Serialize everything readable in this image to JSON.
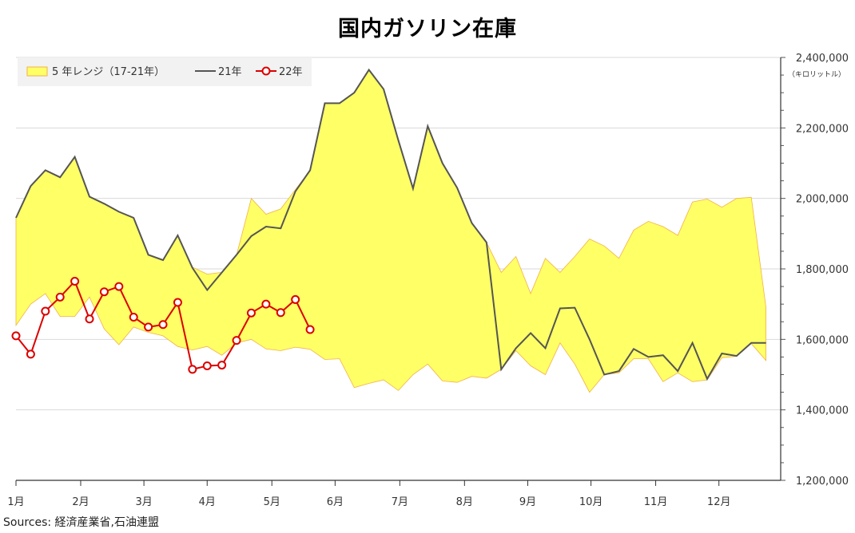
{
  "title": "国内ガソリン在庫",
  "source": "Sources: 経済産業省,石油連盟",
  "chart_data": {
    "type": "area",
    "title": "国内ガソリン在庫",
    "ylabel_unit": "（キロリットル）",
    "ylim": [
      1200000,
      2400000
    ],
    "yticks": [
      "1,200,000",
      "1,400,000",
      "1,600,000",
      "1,800,000",
      "2,000,000",
      "2,200,000",
      "2,400,000"
    ],
    "ytick_values": [
      1200000,
      1400000,
      1600000,
      1800000,
      2000000,
      2200000,
      2400000
    ],
    "xlim": [
      0,
      52
    ],
    "month_labels": [
      "1月",
      "2月",
      "3月",
      "4月",
      "5月",
      "6月",
      "7月",
      "8月",
      "9月",
      "10月",
      "11月",
      "12月"
    ],
    "month_weeks": [
      0,
      4.4,
      8.7,
      13.0,
      17.4,
      21.7,
      26.1,
      30.5,
      34.8,
      39.1,
      43.5,
      47.8
    ],
    "grid": true,
    "legend": "top-left",
    "legend_labels": {
      "range": "5 年レンジ（17-21年）",
      "y21": "21年",
      "y22": "22年"
    },
    "colors": {
      "range_fill": "#ffff66",
      "range_stroke": "#f0b24a",
      "y21": "#555555",
      "y22": "#dd0000",
      "grid": "#d9d9d9"
    },
    "range_upper": [
      1945000,
      2035000,
      2080000,
      2060000,
      2115000,
      2005000,
      1985000,
      1962000,
      1945000,
      1840000,
      1825000,
      1895000,
      1805000,
      1785000,
      1790000,
      1840000,
      2000000,
      1955000,
      1970000,
      2025000,
      2080000,
      2270000,
      2270000,
      2300000,
      2365000,
      2310000,
      2165000,
      2028000,
      2205000,
      2100000,
      2030000,
      1930000,
      1875000,
      1790000,
      1835000,
      1730000,
      1830000,
      1790000,
      1835000,
      1885000,
      1865000,
      1830000,
      1910000,
      1935000,
      1920000,
      1895000,
      1990000,
      1998000,
      1975000,
      2000000,
      2003000,
      1690000
    ],
    "range_lower": [
      1640000,
      1700000,
      1730000,
      1665000,
      1665000,
      1720000,
      1630000,
      1585000,
      1635000,
      1620000,
      1610000,
      1580000,
      1570000,
      1580000,
      1555000,
      1590000,
      1600000,
      1573000,
      1568000,
      1578000,
      1572000,
      1543000,
      1545000,
      1463000,
      1475000,
      1485000,
      1455000,
      1500000,
      1530000,
      1482000,
      1478000,
      1495000,
      1490000,
      1515000,
      1568000,
      1525000,
      1500000,
      1590000,
      1530000,
      1450000,
      1500000,
      1505000,
      1545000,
      1545000,
      1480000,
      1505000,
      1480000,
      1485000,
      1548000,
      1552000,
      1588000,
      1540000
    ],
    "series": [
      {
        "name": "21年",
        "values": [
          1945000,
          2035000,
          2080000,
          2060000,
          2118000,
          2005000,
          1985000,
          1962000,
          1945000,
          1840000,
          1825000,
          1895000,
          1803000,
          1740000,
          1790000,
          1840000,
          1893000,
          1920000,
          1915000,
          2020000,
          2080000,
          2270000,
          2270000,
          2300000,
          2365000,
          2310000,
          2165000,
          2028000,
          2205000,
          2100000,
          2030000,
          1930000,
          1875000,
          1515000,
          1575000,
          1618000,
          1575000,
          1688000,
          1690000,
          1600000,
          1500000,
          1510000,
          1573000,
          1550000,
          1555000,
          1510000,
          1590000,
          1488000,
          1560000,
          1553000,
          1590000,
          1590000
        ]
      },
      {
        "name": "22年",
        "values": [
          1610000,
          1558000,
          1680000,
          1720000,
          1765000,
          1658000,
          1735000,
          1750000,
          1663000,
          1635000,
          1642000,
          1705000,
          1515000,
          1525000,
          1527000,
          1597000,
          1675000,
          1700000,
          1676000,
          1713000,
          1628000
        ]
      }
    ]
  }
}
